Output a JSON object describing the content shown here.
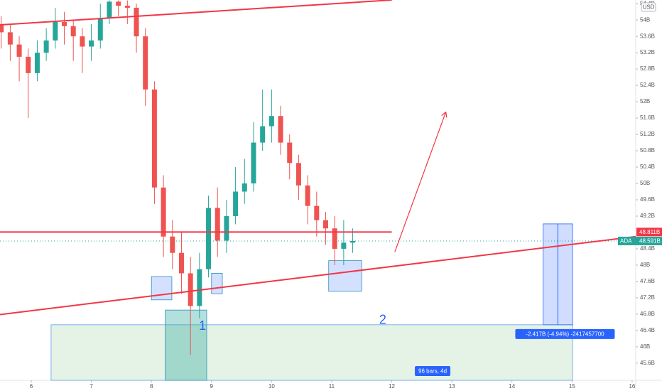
{
  "chart_data": {
    "type": "candlestick",
    "currency": "USD",
    "x": [
      5.5,
      5.65,
      5.8,
      5.95,
      6.1,
      6.25,
      6.4,
      6.55,
      6.7,
      6.85,
      7.0,
      7.15,
      7.3,
      7.45,
      7.6,
      7.75,
      7.9,
      8.05,
      8.2,
      8.35,
      8.5,
      8.65,
      8.8,
      8.95,
      9.1,
      9.25,
      9.4,
      9.55,
      9.7,
      9.85,
      10.0,
      10.15,
      10.3,
      10.45,
      10.6,
      10.75,
      10.9,
      11.05,
      11.2,
      11.35
    ],
    "open": [
      53.9,
      53.7,
      53.4,
      53.1,
      52.7,
      53.2,
      53.5,
      53.95,
      53.85,
      53.6,
      53.35,
      53.5,
      54.05,
      54.45,
      54.35,
      54.3,
      53.6,
      52.3,
      49.9,
      48.7,
      48.3,
      47.8,
      47.0,
      47.9,
      49.4,
      48.6,
      49.2,
      49.8,
      50.0,
      51.0,
      51.4,
      51.65,
      51.0,
      50.5,
      49.95,
      49.45,
      49.1,
      48.9,
      48.4,
      48.55
    ],
    "high": [
      54.1,
      53.9,
      53.6,
      53.3,
      53.5,
      53.8,
      54.3,
      54.2,
      54.0,
      53.8,
      53.9,
      54.4,
      54.48,
      54.48,
      54.48,
      54.4,
      53.8,
      52.5,
      50.2,
      49.1,
      48.8,
      48.2,
      48.3,
      49.7,
      49.9,
      49.6,
      50.4,
      50.6,
      51.5,
      52.3,
      52.3,
      51.9,
      51.2,
      50.7,
      50.2,
      49.8,
      49.3,
      49.2,
      49.1,
      48.9
    ],
    "low": [
      53.3,
      53.0,
      52.5,
      51.6,
      52.5,
      53.0,
      53.3,
      53.4,
      53.0,
      52.7,
      53.0,
      53.3,
      53.9,
      54.1,
      53.9,
      53.2,
      51.9,
      49.5,
      48.2,
      47.9,
      47.3,
      45.8,
      46.7,
      47.7,
      48.2,
      48.3,
      49.0,
      49.5,
      49.8,
      50.8,
      51.0,
      50.7,
      50.1,
      49.6,
      49.0,
      48.7,
      48.5,
      48.0,
      48.0,
      48.3
    ],
    "close": [
      53.7,
      53.4,
      53.1,
      52.7,
      53.2,
      53.5,
      53.95,
      53.85,
      53.6,
      53.35,
      53.5,
      54.05,
      54.45,
      54.35,
      54.3,
      53.6,
      52.3,
      49.9,
      48.7,
      48.3,
      47.8,
      47.0,
      47.9,
      49.4,
      48.6,
      49.2,
      49.8,
      50.0,
      51.0,
      51.4,
      51.65,
      51.0,
      50.5,
      49.95,
      49.45,
      49.1,
      48.9,
      48.4,
      48.55,
      48.591
    ],
    "up_color": "#26a69a",
    "down_color": "#ef5350",
    "xlim": [
      5.48,
      16.06
    ],
    "ylim": [
      45.18,
      54.49
    ],
    "xticks": [
      6,
      7,
      8,
      9,
      10,
      11,
      12,
      13,
      14,
      15,
      16
    ],
    "yticks": [
      {
        "value": 54.4,
        "label": "54.4B"
      },
      {
        "value": 54,
        "label": "54B"
      },
      {
        "value": 53.6,
        "label": "53.6B"
      },
      {
        "value": 53.2,
        "label": "53.2B"
      },
      {
        "value": 52.8,
        "label": "52.8B"
      },
      {
        "value": 52.4,
        "label": "52.4B"
      },
      {
        "value": 52,
        "label": "52B"
      },
      {
        "value": 51.6,
        "label": "51.6B"
      },
      {
        "value": 51.2,
        "label": "51.2B"
      },
      {
        "value": 50.8,
        "label": "50.8B"
      },
      {
        "value": 50.4,
        "label": "50.4B"
      },
      {
        "value": 50,
        "label": "50B"
      },
      {
        "value": 49.6,
        "label": "49.6B"
      },
      {
        "value": 49.2,
        "label": "49.2B"
      },
      {
        "value": 48.4,
        "label": "48.4B"
      },
      {
        "value": 48,
        "label": "48B"
      },
      {
        "value": 47.6,
        "label": "47.6B"
      },
      {
        "value": 47.2,
        "label": "47.2B"
      },
      {
        "value": 46.8,
        "label": "46.8B"
      },
      {
        "value": 46.4,
        "label": "46.4B"
      },
      {
        "value": 46,
        "label": "46B"
      },
      {
        "value": 45.6,
        "label": "45.6B"
      }
    ],
    "level_line": {
      "value": 48.811,
      "label": "48.811B",
      "x": [
        5.48,
        12.0
      ],
      "color": "#f23645"
    },
    "last_price": {
      "name": "ADA",
      "value": 48.591,
      "label": "48.591B"
    },
    "trend_lines": [
      {
        "x": [
          5.48,
          12.0
        ],
        "y": [
          53.88,
          54.49
        ]
      },
      {
        "x": [
          5.48,
          16.06
        ],
        "y": [
          46.79,
          48.7
        ]
      }
    ],
    "arrow": {
      "x": [
        12.05,
        12.9
      ],
      "y": [
        48.32,
        51.75
      ]
    },
    "zones": [
      {
        "x": [
          8.0,
          8.34
        ],
        "y": [
          47.15,
          47.72
        ]
      },
      {
        "x": [
          9.0,
          9.18
        ],
        "y": [
          47.3,
          47.8
        ]
      },
      {
        "x": [
          10.95,
          11.5
        ],
        "y": [
          47.36,
          48.11
        ]
      },
      {
        "x": [
          8.23,
          8.92
        ],
        "y": [
          45.18,
          46.9
        ]
      }
    ],
    "date_range": {
      "x": [
        6.33,
        15.01
      ],
      "y": [
        45.18,
        46.54
      ],
      "label": "96 bars, 4d"
    },
    "measure": {
      "x": [
        14.52,
        15.01
      ],
      "y": [
        46.54,
        49.01
      ],
      "label": "-2.417B (-4.94%) -2417457700"
    },
    "annotations": [
      "1",
      "2"
    ]
  }
}
